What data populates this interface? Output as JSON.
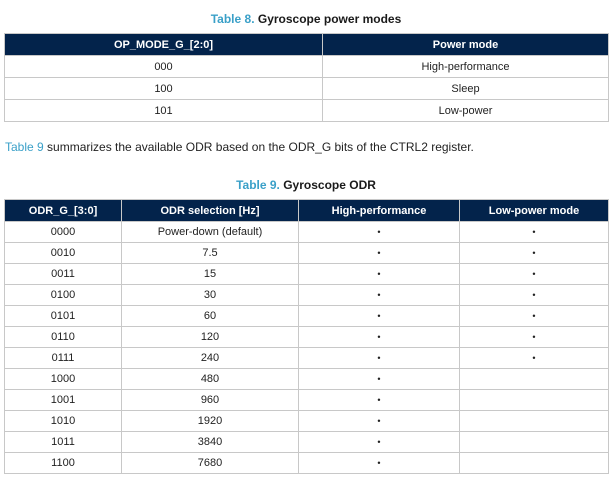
{
  "table8": {
    "caption_number": "Table 8.",
    "caption_title": "Gyroscope power modes",
    "headers": [
      "OP_MODE_G_[2:0]",
      "Power mode"
    ],
    "rows": [
      [
        "000",
        "High-performance"
      ],
      [
        "100",
        "Sleep"
      ],
      [
        "101",
        "Low-power"
      ]
    ]
  },
  "paragraph": {
    "link": "Table 9",
    "text": " summarizes the available ODR based on the ODR_G bits of the CTRL2 register."
  },
  "table9": {
    "caption_number": "Table 9.",
    "caption_title": "Gyroscope ODR",
    "headers": [
      "ODR_G_[3:0]",
      "ODR selection [Hz]",
      "High-performance",
      "Low-power mode"
    ],
    "bullet": "•",
    "rows": [
      {
        "code": "0000",
        "odr": "Power-down (default)",
        "hp": true,
        "lp": true
      },
      {
        "code": "0010",
        "odr": "7.5",
        "hp": true,
        "lp": true
      },
      {
        "code": "0011",
        "odr": "15",
        "hp": true,
        "lp": true
      },
      {
        "code": "0100",
        "odr": "30",
        "hp": true,
        "lp": true
      },
      {
        "code": "0101",
        "odr": "60",
        "hp": true,
        "lp": true
      },
      {
        "code": "0110",
        "odr": "120",
        "hp": true,
        "lp": true
      },
      {
        "code": "0111",
        "odr": "240",
        "hp": true,
        "lp": true
      },
      {
        "code": "1000",
        "odr": "480",
        "hp": true,
        "lp": false
      },
      {
        "code": "1001",
        "odr": "960",
        "hp": true,
        "lp": false
      },
      {
        "code": "1010",
        "odr": "1920",
        "hp": true,
        "lp": false
      },
      {
        "code": "1011",
        "odr": "3840",
        "hp": true,
        "lp": false
      },
      {
        "code": "1100",
        "odr": "7680",
        "hp": true,
        "lp": false
      }
    ]
  }
}
